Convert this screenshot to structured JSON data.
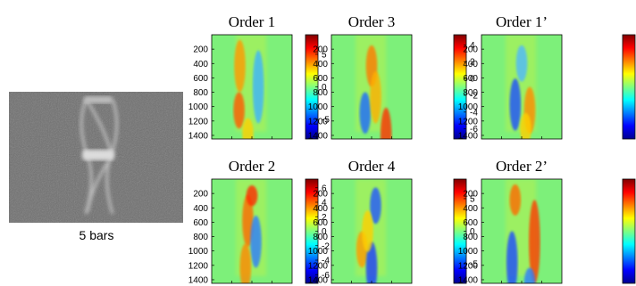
{
  "photo": {
    "caption": "5 bars"
  },
  "colormap": "jet",
  "y_ticks": [
    "200",
    "400",
    "600",
    "800",
    "1000",
    "1200",
    "1400"
  ],
  "panels": [
    {
      "title": "Order 1",
      "colorbar_ticks": [
        "5",
        "0",
        "-5"
      ]
    },
    {
      "title": "Order 3",
      "colorbar_ticks": [
        "4",
        "2",
        "0",
        "-2",
        "-4",
        "-6"
      ]
    },
    {
      "title": "Order 1’",
      "colorbar_ticks": []
    },
    {
      "title": "Order 2",
      "colorbar_ticks": [
        "6",
        "4",
        "2",
        "0",
        "-2",
        "-4",
        "-6"
      ]
    },
    {
      "title": "Order 4",
      "colorbar_ticks": [
        "5",
        "0",
        "-5"
      ]
    },
    {
      "title": "Order 2’",
      "colorbar_ticks": []
    }
  ]
}
